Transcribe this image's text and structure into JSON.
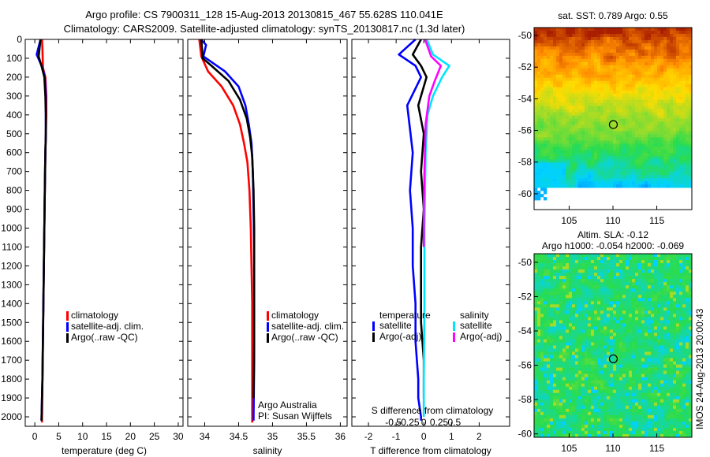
{
  "header": {
    "line1": "Argo profile: CS 7900311_128 15-Aug-2013 20130815_467 55.628S 110.041E",
    "line2": "Climatology: CARS2009. Satellite-adjusted climatology: synTS_20130817.nc (1.3d later)"
  },
  "footer": {
    "credit": "Argo Australia",
    "pi": "PI: Susan Wijffels",
    "stamp": "IMOS 24-Aug-2013 20:00:43"
  },
  "colors": {
    "climatology": "#ff0000",
    "satellite": "#0000ff",
    "argo": "#000000",
    "salinity_satellite": "#00e5ff",
    "salinity_argo": "#ff00ff"
  },
  "chart_data": [
    {
      "type": "line",
      "id": "temperature",
      "xlabel": "temperature (deg C)",
      "ylabel": "",
      "xlim": [
        -2,
        31
      ],
      "ylim": [
        2050,
        0
      ],
      "xticks": [
        0,
        5,
        10,
        15,
        20,
        25,
        30
      ],
      "yticks": [
        0,
        100,
        200,
        300,
        400,
        500,
        600,
        700,
        800,
        900,
        1000,
        1100,
        1200,
        1300,
        1400,
        1500,
        1600,
        1700,
        1800,
        1900,
        2000
      ],
      "legend": [
        "climatology",
        "satellite-adj. clim.",
        "Argo(..raw -QC)"
      ],
      "legend_position": "lower-center",
      "series": [
        {
          "name": "climatology",
          "color": "#ff0000",
          "x": [
            1.5,
            1.6,
            1.7,
            2.2,
            2.4,
            2.4,
            2.3,
            2.2,
            2.1,
            2.0,
            1.9,
            1.8,
            1.7,
            1.6,
            1.5
          ],
          "y": [
            0,
            50,
            150,
            200,
            300,
            400,
            500,
            600,
            800,
            1000,
            1200,
            1400,
            1600,
            1800,
            2030
          ]
        },
        {
          "name": "satellite-adj. clim.",
          "color": "#0000ff",
          "x": [
            1.2,
            0.4,
            1.6,
            2.1,
            2.3,
            2.3,
            2.3,
            2.2,
            2.1,
            2.0,
            1.9,
            1.8,
            1.7,
            1.6,
            1.4
          ],
          "y": [
            0,
            80,
            150,
            200,
            300,
            400,
            500,
            600,
            800,
            1000,
            1200,
            1400,
            1600,
            1800,
            2020
          ]
        },
        {
          "name": "Argo(..raw -QC)",
          "color": "#000000",
          "x": [
            1.2,
            0.8,
            1.5,
            2.0,
            2.2,
            2.3,
            2.3,
            2.2,
            2.1,
            2.0,
            1.9,
            1.8,
            1.7,
            1.6,
            1.4
          ],
          "y": [
            0,
            90,
            150,
            200,
            300,
            400,
            500,
            600,
            800,
            1000,
            1200,
            1400,
            1600,
            1800,
            2020
          ]
        }
      ]
    },
    {
      "type": "line",
      "id": "salinity",
      "xlabel": "salinity",
      "ylabel": "",
      "xlim": [
        33.75,
        36.1
      ],
      "ylim": [
        2050,
        0
      ],
      "xticks": [
        34,
        34.5,
        35,
        35.5,
        36
      ],
      "legend": [
        "climatology",
        "satellite-adj. clim.",
        "Argo(..raw -QC)"
      ],
      "legend_position": "lower-center",
      "series": [
        {
          "name": "climatology",
          "color": "#ff0000",
          "x": [
            33.92,
            33.95,
            34.05,
            34.25,
            34.42,
            34.52,
            34.58,
            34.63,
            34.66,
            34.68,
            34.69,
            34.7,
            34.7,
            34.7,
            34.7
          ],
          "y": [
            0,
            90,
            170,
            250,
            350,
            450,
            550,
            650,
            800,
            1000,
            1200,
            1400,
            1600,
            1800,
            2030
          ]
        },
        {
          "name": "satellite-adj. clim.",
          "color": "#0000ff",
          "x": [
            33.95,
            34.02,
            33.98,
            34.3,
            34.5,
            34.6,
            34.65,
            34.69,
            34.71,
            34.72,
            34.73,
            34.73,
            34.73,
            34.73,
            34.72
          ],
          "y": [
            0,
            30,
            90,
            170,
            250,
            350,
            450,
            550,
            700,
            900,
            1100,
            1300,
            1500,
            1700,
            2020
          ]
        },
        {
          "name": "Argo(..raw -QC)",
          "color": "#000000",
          "x": [
            33.95,
            33.97,
            34.1,
            34.35,
            34.52,
            34.62,
            34.67,
            34.7,
            34.72,
            34.73,
            34.73,
            34.73,
            34.73,
            34.72
          ],
          "y": [
            0,
            100,
            140,
            220,
            320,
            420,
            520,
            620,
            800,
            1000,
            1200,
            1400,
            1600,
            1900
          ]
        }
      ]
    },
    {
      "type": "line",
      "id": "difference",
      "xlabel": "T difference from climatology",
      "top_label": "S difference from climatology",
      "ylabel": "",
      "xlim": [
        -2.6,
        3.1
      ],
      "ylim": [
        2050,
        0
      ],
      "xticks": [
        -2,
        -1,
        0,
        1,
        2
      ],
      "sticks": [
        -0.5,
        -0.25,
        0,
        0.25,
        0.5
      ],
      "sticks_labels": [
        "-0.5",
        "-0.25",
        "0",
        "0.25",
        "0.5"
      ],
      "legend_temperature_title": "temperature",
      "legend_salinity_title": "salinity",
      "legend_temperature": [
        "satellite",
        "Argo(-adj)"
      ],
      "legend_salinity": [
        "satellite",
        "Argo(-adj)"
      ],
      "series": [
        {
          "name": "T satellite",
          "color": "#0000ff",
          "x": [
            -0.3,
            -0.9,
            -0.3,
            -0.1,
            -0.6,
            -0.4,
            -0.5,
            -0.4,
            -0.4,
            -0.3,
            -0.3,
            -0.2,
            -0.2,
            -0.1,
            -0.1
          ],
          "y": [
            0,
            80,
            140,
            200,
            350,
            600,
            800,
            1000,
            1200,
            1400,
            1600,
            1800,
            1900,
            2000,
            2020
          ]
        },
        {
          "name": "T Argo(-adj)",
          "color": "#000000",
          "x": [
            -0.1,
            -0.4,
            -0.1,
            0.1,
            -0.2,
            0.0,
            -0.1,
            0.0,
            -0.1,
            -0.1,
            -0.1,
            0.0,
            0.0
          ],
          "y": [
            0,
            80,
            140,
            200,
            350,
            500,
            700,
            900,
            1100,
            1300,
            1500,
            1700,
            1900
          ]
        },
        {
          "name": "S satellite",
          "color": "#00e5ff",
          "x": [
            0.05,
            0.15,
            0.42,
            0.3,
            0.15,
            0.06,
            0.03,
            0.02,
            0.01,
            0.01,
            0.0,
            0.0
          ],
          "y": [
            0,
            80,
            140,
            200,
            300,
            400,
            600,
            800,
            1000,
            1400,
            1800,
            2000
          ]
        },
        {
          "name": "S Argo(-adj)",
          "color": "#ff00ff",
          "x": [
            0.02,
            0.12,
            0.28,
            0.18,
            0.09,
            0.03,
            0.01,
            0.0,
            0.0
          ],
          "y": [
            0,
            90,
            140,
            220,
            300,
            450,
            700,
            900,
            1100
          ]
        }
      ]
    },
    {
      "type": "heatmap",
      "id": "sst_map",
      "title": "sat. SST: 0.789 Argo: 0.55",
      "xticks": [
        105,
        110,
        115
      ],
      "yticks": [
        -50,
        -52,
        -54,
        -56,
        -58,
        -60
      ],
      "xlim": [
        101,
        119
      ],
      "ylim": [
        -61,
        -49.5
      ],
      "marker": {
        "lon": 110.041,
        "lat": -55.628
      }
    },
    {
      "type": "heatmap",
      "id": "sla_map",
      "title": "Altim. SLA: -0.12",
      "subtitle": "Argo h1000: -0.054 h2000: -0.069",
      "xticks": [
        105,
        110,
        115
      ],
      "yticks": [
        -50,
        -52,
        -54,
        -56,
        -58,
        -60
      ],
      "xlim": [
        101,
        119
      ],
      "ylim": [
        -60.2,
        -49.5
      ],
      "marker": {
        "lon": 110.041,
        "lat": -55.628
      }
    }
  ]
}
